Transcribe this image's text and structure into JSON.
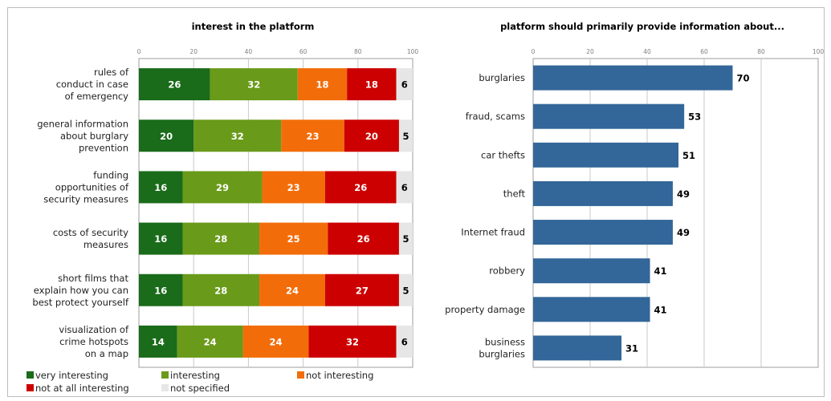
{
  "chart_data": [
    {
      "type": "bar",
      "orientation": "horizontal",
      "stacked": true,
      "title": "interest in the platform",
      "xlim": [
        0,
        100
      ],
      "xticks": [
        0,
        20,
        40,
        60,
        80,
        100
      ],
      "grid": true,
      "legend_position": "bottom",
      "categories": [
        [
          "rules of",
          "conduct in case",
          "of emergency"
        ],
        [
          "general information",
          "about burglary",
          "prevention"
        ],
        [
          "funding",
          "opportunities of",
          "security measures"
        ],
        [
          "costs of security",
          "measures"
        ],
        [
          "short films that",
          "explain how you can",
          "best protect yourself"
        ],
        [
          "visualization of",
          "crime hotspots",
          "on a map"
        ]
      ],
      "series": [
        {
          "name": "very interesting",
          "color": "#1a6b1a",
          "values": [
            26,
            20,
            16,
            16,
            16,
            14
          ]
        },
        {
          "name": "interesting",
          "color": "#6a9a1a",
          "values": [
            32,
            32,
            29,
            28,
            28,
            24
          ]
        },
        {
          "name": "not interesting",
          "color": "#f26d0a",
          "values": [
            18,
            23,
            23,
            25,
            24,
            24
          ]
        },
        {
          "name": "not at all interesting",
          "color": "#cc0000",
          "values": [
            18,
            20,
            26,
            26,
            27,
            32
          ]
        },
        {
          "name": "not specified",
          "color": "#e6e6e6",
          "values": [
            6,
            5,
            6,
            5,
            5,
            6
          ]
        }
      ]
    },
    {
      "type": "bar",
      "orientation": "horizontal",
      "title": "platform should primarily provide information about...",
      "xlim": [
        0,
        100
      ],
      "xticks": [
        0,
        20,
        40,
        60,
        80,
        100
      ],
      "grid": true,
      "color": "#336699",
      "categories": [
        [
          "burglaries"
        ],
        [
          "fraud, scams"
        ],
        [
          "car thefts"
        ],
        [
          "theft"
        ],
        [
          "Internet fraud"
        ],
        [
          "robbery"
        ],
        [
          "property damage"
        ],
        [
          "business",
          "burglaries"
        ]
      ],
      "values": [
        70,
        53,
        51,
        49,
        49,
        41,
        41,
        31
      ]
    }
  ]
}
